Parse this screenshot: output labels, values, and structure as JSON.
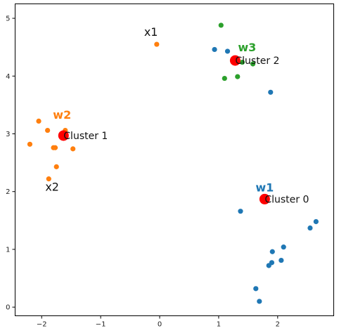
{
  "chart_data": {
    "type": "scatter",
    "xlim": [
      -2.45,
      2.95
    ],
    "ylim": [
      -0.15,
      5.25
    ],
    "xticks": [
      -2,
      -1,
      0,
      1,
      2
    ],
    "yticks": [
      0,
      1,
      2,
      3,
      4,
      5
    ],
    "xtick_labels": [
      "−2",
      "−1",
      "0",
      "1",
      "2"
    ],
    "ytick_labels": [
      "0",
      "1",
      "2",
      "3",
      "4",
      "5"
    ],
    "grid": false,
    "series": [
      {
        "color": "#1f77b4",
        "points": [
          [
            0.93,
            4.46
          ],
          [
            1.15,
            4.43
          ],
          [
            1.88,
            3.72
          ],
          [
            1.37,
            1.66
          ],
          [
            2.65,
            1.48
          ],
          [
            2.55,
            1.37
          ],
          [
            2.1,
            1.04
          ],
          [
            1.91,
            0.96
          ],
          [
            1.9,
            0.77
          ],
          [
            2.06,
            0.81
          ],
          [
            1.85,
            0.72
          ],
          [
            1.63,
            0.32
          ],
          [
            1.69,
            0.1
          ]
        ]
      },
      {
        "color": "#ff7f0e",
        "points": [
          [
            -0.05,
            4.55
          ],
          [
            -2.05,
            3.22
          ],
          [
            -1.9,
            3.06
          ],
          [
            -1.6,
            3.06
          ],
          [
            -2.2,
            2.82
          ],
          [
            -1.8,
            2.76
          ],
          [
            -1.77,
            2.76
          ],
          [
            -1.47,
            2.74
          ],
          [
            -1.75,
            2.43
          ],
          [
            -1.88,
            2.22
          ]
        ]
      },
      {
        "color": "#2ca02c",
        "points": [
          [
            1.04,
            4.88
          ],
          [
            1.26,
            4.3
          ],
          [
            1.4,
            4.24
          ],
          [
            1.58,
            4.21
          ],
          [
            1.32,
            3.99
          ],
          [
            1.1,
            3.96
          ]
        ]
      }
    ],
    "centroids": {
      "color": "#ff0000",
      "points": [
        [
          1.78,
          1.87
        ],
        [
          -1.63,
          2.97
        ],
        [
          1.28,
          4.27
        ]
      ]
    },
    "annotations": [
      {
        "text": "Cluster 0",
        "x": 1.78,
        "y": 1.87,
        "style": "ann"
      },
      {
        "text": "Cluster 1",
        "x": -1.63,
        "y": 2.97,
        "style": "ann"
      },
      {
        "text": "Cluster 2",
        "x": 1.28,
        "y": 4.27,
        "style": "ann"
      },
      {
        "text": "x1",
        "x": -0.05,
        "y": 4.55,
        "style": "ann-big"
      },
      {
        "text": "x2",
        "x": -1.88,
        "y": 2.22,
        "style": "ann-big"
      },
      {
        "text": "w1",
        "x": 1.78,
        "y": 1.87,
        "style": "w-label",
        "color": "#1f77b4"
      },
      {
        "text": "w2",
        "x": -1.63,
        "y": 2.97,
        "style": "w-label",
        "color": "#ff7f0e"
      },
      {
        "text": "w3",
        "x": 1.28,
        "y": 4.27,
        "style": "w-label",
        "color": "#2ca02c"
      }
    ]
  }
}
